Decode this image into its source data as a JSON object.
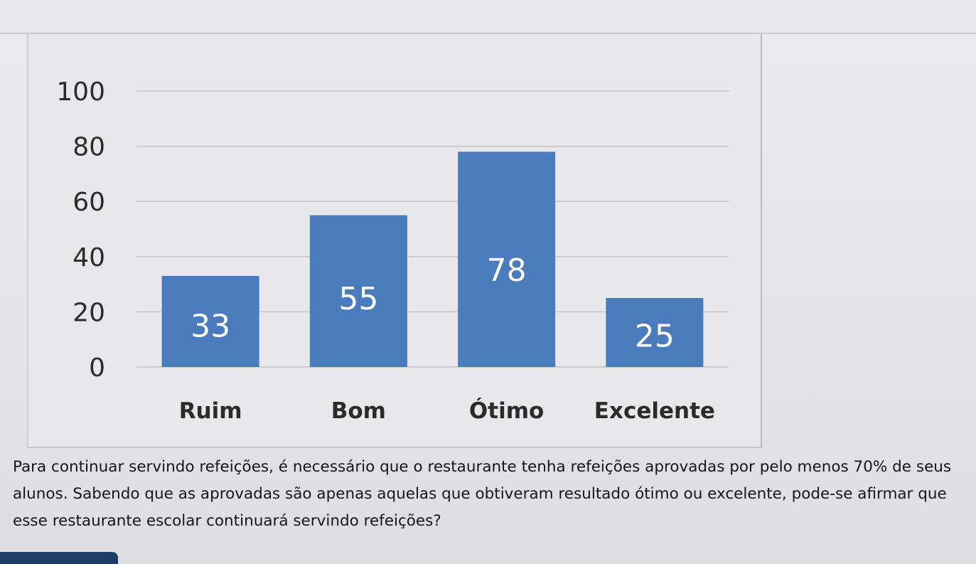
{
  "chart_data": {
    "type": "bar",
    "title": "",
    "xlabel": "",
    "ylabel": "",
    "categories": [
      "Ruim",
      "Bom",
      "Ótimo",
      "Excelente"
    ],
    "values": [
      33,
      55,
      78,
      25
    ],
    "data_labels": [
      "33",
      "55",
      "78",
      "25"
    ],
    "ylim": [
      0,
      100
    ],
    "yticks": [
      0,
      20,
      40,
      60,
      80,
      100
    ],
    "grid": true,
    "legend": "none",
    "bar_color": "#4a7bbd"
  },
  "question": {
    "text": "Para continuar servindo refeições, é necessário que o restaurante tenha refeições aprovadas por pelo menos 70% de seus alunos. Sabendo que as aprovadas são apenas aquelas que obtiveram resultado ótimo ou excelente, pode-se afirmar que esse restaurante escolar continuará servindo refeições?"
  }
}
